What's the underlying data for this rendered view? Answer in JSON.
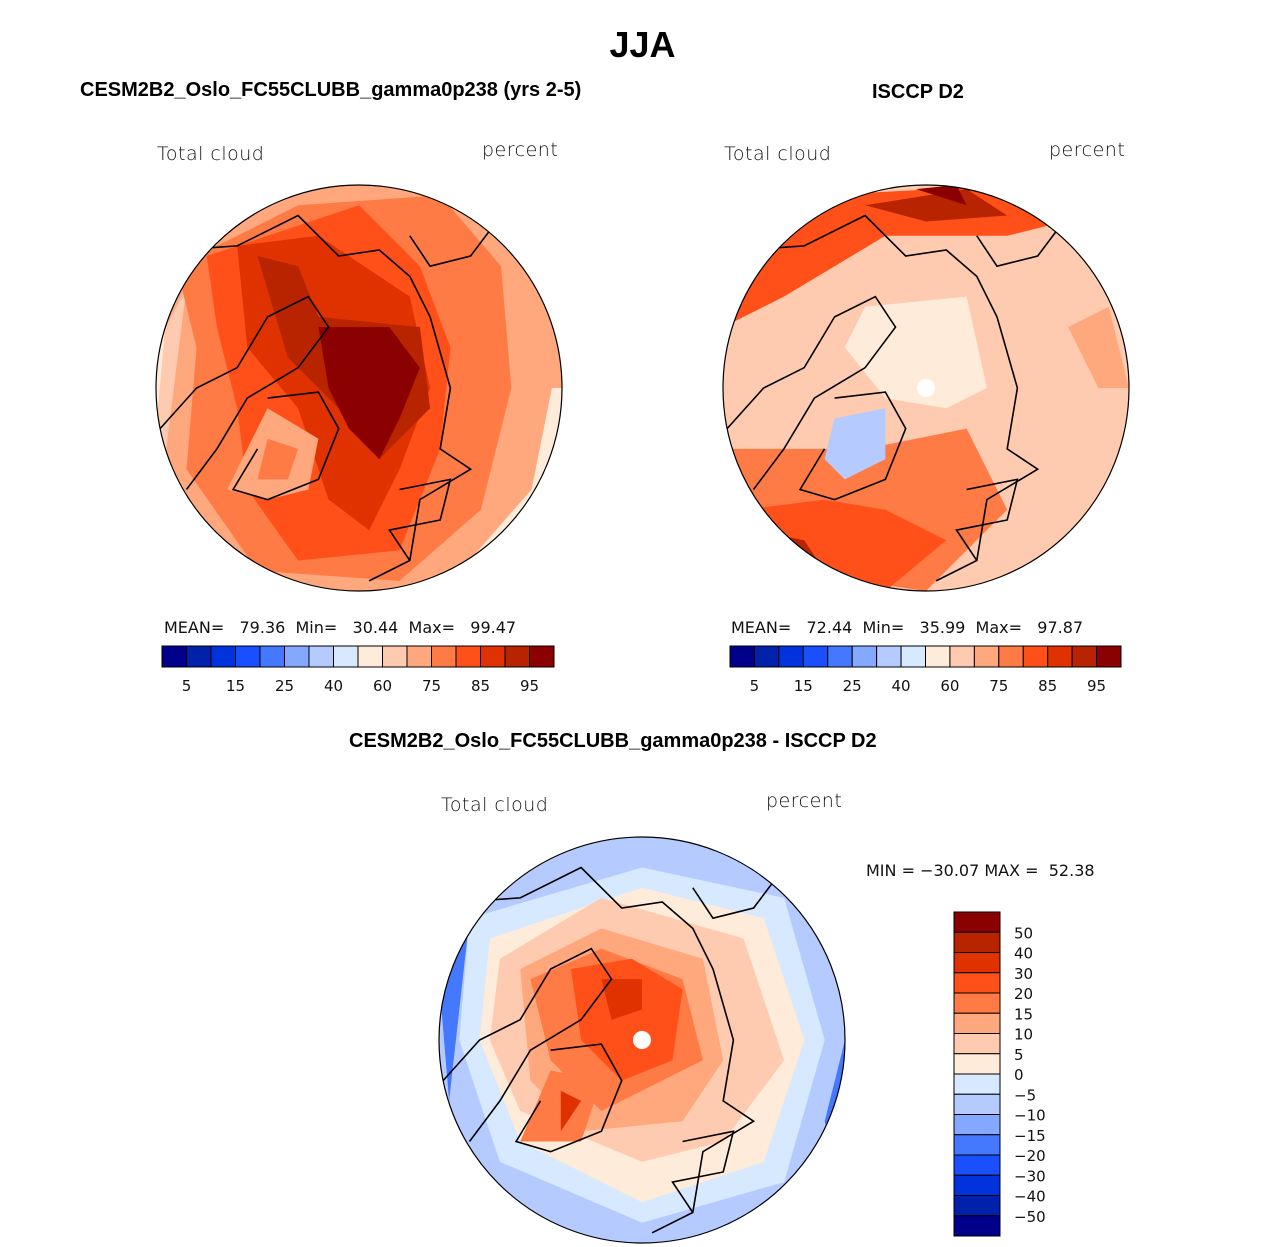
{
  "figure": {
    "title": "JJA",
    "panels": [
      {
        "id": "model",
        "title": "CESM2B2_Oslo_FC55CLUBB_gamma0p238 (yrs 2-5)",
        "left_label": "Total cloud",
        "right_label": "percent",
        "stats": {
          "mean_label": "MEAN=",
          "mean": "79.36",
          "min_label": "Min=",
          "min": "30.44",
          "max_label": "Max=",
          "max": "99.47"
        }
      },
      {
        "id": "obs",
        "title": "ISCCP D2",
        "left_label": "Total cloud",
        "right_label": "percent",
        "stats": {
          "mean_label": "MEAN=",
          "mean": "72.44",
          "min_label": "Min=",
          "min": "35.99",
          "max_label": "Max=",
          "max": "97.87"
        }
      },
      {
        "id": "diff",
        "title": "CESM2B2_Oslo_FC55CLUBB_gamma0p238 - ISCCP D2",
        "left_label": "Total cloud",
        "right_label": "percent",
        "stats_text": "MIN = −30.07 MAX =  52.38"
      }
    ]
  },
  "chart_data": [
    {
      "type": "heatmap",
      "projection": "north polar stereographic",
      "title": "CESM2B2_Oslo_FC55CLUBB_gamma0p238 (yrs 2-5)",
      "variable": "Total cloud",
      "units": "percent",
      "season": "JJA",
      "mean": 79.36,
      "min": 30.44,
      "max": 99.47,
      "colorbar": {
        "orientation": "horizontal",
        "levels": [
          5,
          10,
          15,
          20,
          25,
          30,
          40,
          50,
          60,
          70,
          75,
          80,
          85,
          90,
          95
        ],
        "tick_labels": [
          "5",
          "15",
          "25",
          "40",
          "60",
          "75",
          "85",
          "95"
        ],
        "colors": [
          "#00008b",
          "#0022aa",
          "#0033dd",
          "#1a4fff",
          "#4478ff",
          "#85a8ff",
          "#b5caff",
          "#d6e9ff",
          "#ffebd9",
          "#ffcbb0",
          "#ffa87e",
          "#ff7b45",
          "#ff5019",
          "#e03200",
          "#b82300",
          "#8b0000"
        ]
      },
      "features": [
        "highest cloud (>95%) over central Arctic Ocean",
        "lower values (~60-75%) over Greenland interior",
        "lowest values near low-latitude map edge (~40-60%)"
      ]
    },
    {
      "type": "heatmap",
      "projection": "north polar stereographic",
      "title": "ISCCP D2",
      "variable": "Total cloud",
      "units": "percent",
      "season": "JJA",
      "mean": 72.44,
      "min": 35.99,
      "max": 97.87,
      "colorbar": {
        "orientation": "horizontal",
        "levels": [
          5,
          10,
          15,
          20,
          25,
          30,
          40,
          50,
          60,
          70,
          75,
          80,
          85,
          90,
          95
        ],
        "tick_labels": [
          "5",
          "15",
          "25",
          "40",
          "60",
          "75",
          "85",
          "95"
        ],
        "colors": [
          "#00008b",
          "#0022aa",
          "#0033dd",
          "#1a4fff",
          "#4478ff",
          "#85a8ff",
          "#b5caff",
          "#d6e9ff",
          "#ffebd9",
          "#ffcbb0",
          "#ffa87e",
          "#ff7b45",
          "#ff5019",
          "#e03200",
          "#b82300",
          "#8b0000"
        ]
      },
      "features": [
        "missing data at North Pole (white dot)",
        "lower cloud (~40-60%) over Greenland",
        "~60-70% over central Arctic",
        "highest (>90%) over North Pacific and North Atlantic margins"
      ]
    },
    {
      "type": "heatmap",
      "projection": "north polar stereographic",
      "title": "CESM2B2_Oslo_FC55CLUBB_gamma0p238 - ISCCP D2",
      "variable": "Total cloud",
      "units": "percent",
      "season": "JJA",
      "min": -30.07,
      "max": 52.38,
      "colorbar": {
        "orientation": "vertical",
        "levels": [
          -50,
          -40,
          -30,
          -20,
          -15,
          -10,
          -5,
          0,
          5,
          10,
          15,
          20,
          30,
          40,
          50
        ],
        "tick_labels": [
          "50",
          "40",
          "30",
          "20",
          "15",
          "10",
          "5",
          "0",
          "−5",
          "−10",
          "−15",
          "−20",
          "−30",
          "−40",
          "−50"
        ],
        "colors": [
          "#00008b",
          "#0022aa",
          "#0033dd",
          "#1a4fff",
          "#4478ff",
          "#85a8ff",
          "#b5caff",
          "#d6e9ff",
          "#ffebd9",
          "#ffcbb0",
          "#ffa87e",
          "#ff7b45",
          "#ff5019",
          "#e03200",
          "#b82300",
          "#8b0000"
        ]
      },
      "features": [
        "positive bias (+20 to +40) over central Arctic and Greenland",
        "negative bias (-10 to -30) near low-latitude map edge",
        "missing data at North Pole"
      ]
    }
  ]
}
